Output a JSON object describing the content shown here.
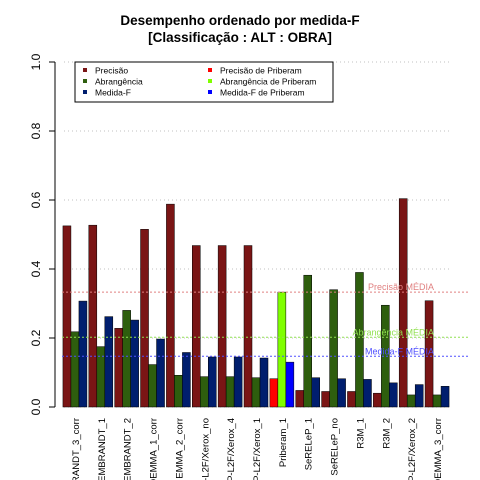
{
  "chart_data": {
    "type": "bar",
    "title": "Desempenho ordenado por medida-F",
    "subtitle": "[Classificação : ALT : OBRA]",
    "ylim": [
      0,
      1.0
    ],
    "y_ticks": [
      "0.0",
      "0.2",
      "0.4",
      "0.6",
      "0.8",
      "1.0"
    ],
    "grid": "horizontal dotted",
    "categories": [
      "RANDT_3_corr",
      "EMBRANDT_1",
      "EMBRANDT_2",
      "DEMMA_1_corr",
      "EMMA_2_corr",
      "P-L2F/Xerox_no",
      "P-L2F/Xerox_4",
      "P-L2F/Xerox_1",
      "Priberam_1",
      "SeRELeP_1",
      "SeRELeP_no",
      "R3M_1",
      "R3M_2",
      "P-L2F/Xerox_2",
      "DEMMA_3_corr"
    ],
    "series": [
      {
        "name": "Precisão",
        "color": "#7a1515",
        "values": [
          0.525,
          0.527,
          0.228,
          0.515,
          0.588,
          0.468,
          0.468,
          0.468,
          0.082,
          0.048,
          0.045,
          0.045,
          0.04,
          0.604,
          0.308
        ]
      },
      {
        "name": "Abrangência",
        "color": "#2e5e0e",
        "values": [
          0.218,
          0.175,
          0.28,
          0.123,
          0.092,
          0.088,
          0.088,
          0.085,
          0.333,
          0.382,
          0.34,
          0.39,
          0.295,
          0.035,
          0.035
        ]
      },
      {
        "name": "Medida-F",
        "color": "#001e6e",
        "values": [
          0.307,
          0.262,
          0.252,
          0.197,
          0.158,
          0.145,
          0.145,
          0.142,
          0.13,
          0.085,
          0.082,
          0.08,
          0.07,
          0.065,
          0.06
        ]
      }
    ],
    "highlight_category": "Priberam_1",
    "highlight_series": [
      {
        "name": "Precisão  de  Priberam",
        "color": "#ff0000"
      },
      {
        "name": "Abrangência  de  Priberam",
        "color": "#7fff00"
      },
      {
        "name": "Medida-F  de  Priberam",
        "color": "#0000ff"
      }
    ],
    "reference_lines": [
      {
        "label": "Precisão MÉDIA",
        "value": 0.333,
        "color": "#e08080"
      },
      {
        "label": "Abrangência MÉDIA",
        "value": 0.202,
        "color": "#90e050"
      },
      {
        "label": "Medida-F MÉDIA",
        "value": 0.147,
        "color": "#5050ff"
      }
    ],
    "legend_position": "top-left"
  }
}
